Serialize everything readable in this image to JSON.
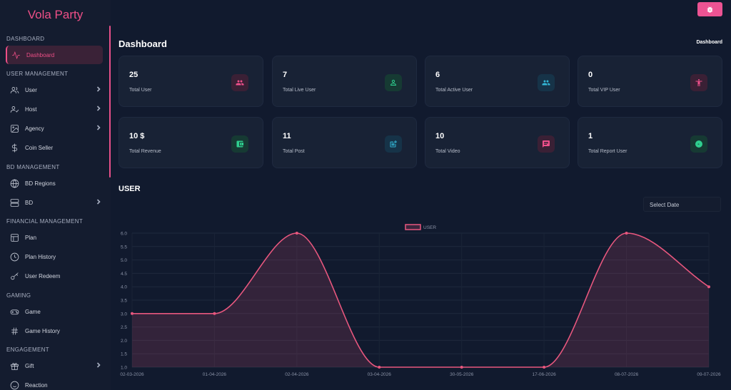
{
  "brand": "Vola Party",
  "top_button_icon": "bug-icon",
  "sidebar": {
    "sections": [
      {
        "title": "DASHBOARD",
        "items": [
          {
            "label": "Dashboard",
            "icon": "activity-icon",
            "active": true,
            "chevron": false
          }
        ]
      },
      {
        "title": "USER MANAGEMENT",
        "items": [
          {
            "label": "User",
            "icon": "users-icon",
            "chevron": true
          },
          {
            "label": "Host",
            "icon": "user-check-icon",
            "chevron": true
          },
          {
            "label": "Agency",
            "icon": "image-icon",
            "chevron": true
          },
          {
            "label": "Coin Seller",
            "icon": "dollar-icon",
            "chevron": false
          }
        ]
      },
      {
        "title": "BD MANAGEMENT",
        "items": [
          {
            "label": "BD Regions",
            "icon": "globe-icon",
            "chevron": false
          },
          {
            "label": "BD",
            "icon": "server-icon",
            "chevron": true
          }
        ]
      },
      {
        "title": "FINANCIAL MANAGEMENT",
        "items": [
          {
            "label": "Plan",
            "icon": "layout-icon",
            "chevron": false
          },
          {
            "label": "Plan History",
            "icon": "clock-icon",
            "chevron": false
          },
          {
            "label": "User Redeem",
            "icon": "key-icon",
            "chevron": false
          }
        ]
      },
      {
        "title": "GAMING",
        "items": [
          {
            "label": "Game",
            "icon": "gamepad-icon",
            "chevron": false
          },
          {
            "label": "Game History",
            "icon": "hash-icon",
            "chevron": false
          }
        ]
      },
      {
        "title": "ENGAGEMENT",
        "items": [
          {
            "label": "Gift",
            "icon": "gift-icon",
            "chevron": true
          },
          {
            "label": "Reaction",
            "icon": "smile-icon",
            "chevron": false
          }
        ]
      }
    ]
  },
  "header": {
    "title": "Dashboard",
    "breadcrumb": "Dashboard"
  },
  "cards": [
    {
      "value": "25",
      "label": "Total User",
      "icon": "users-icon",
      "color": "#f0508c",
      "bg": "#3a2035"
    },
    {
      "value": "7",
      "label": "Total Live User",
      "icon": "user-icon",
      "color": "#2fcf8f",
      "bg": "#163a33"
    },
    {
      "value": "6",
      "label": "Total Active User",
      "icon": "users-icon",
      "color": "#33b7d6",
      "bg": "#163348"
    },
    {
      "value": "0",
      "label": "Total VIP User",
      "icon": "accessibility-icon",
      "color": "#f0508c",
      "bg": "#3a2035"
    },
    {
      "value": "10 $",
      "label": "Total Revenue",
      "icon": "wallet-icon",
      "color": "#2fcf8f",
      "bg": "#163a33"
    },
    {
      "value": "11",
      "label": "Total Post",
      "icon": "post-add-icon",
      "color": "#33b7d6",
      "bg": "#163348"
    },
    {
      "value": "10",
      "label": "Total Video",
      "icon": "message-icon",
      "color": "#f0508c",
      "bg": "#3a2035"
    },
    {
      "value": "1",
      "label": "Total Report User",
      "icon": "messenger-icon",
      "color": "#2fcf8f",
      "bg": "#163a33"
    }
  ],
  "user_section": {
    "title": "USER",
    "date_placeholder": "Select Date"
  },
  "chart_data": {
    "type": "area",
    "series": [
      {
        "name": "USER",
        "color": "#e8577e",
        "values": [
          3,
          3,
          6,
          1,
          1,
          1,
          6,
          4
        ]
      }
    ],
    "categories": [
      "02-03-2026",
      "01-04-2026",
      "02-04-2026",
      "03-04-2026",
      "30-05-2026",
      "17-06-2026",
      "08-07-2026",
      "09-07-2026"
    ],
    "yticks": [
      "1.0",
      "1.5",
      "2.0",
      "2.5",
      "3.0",
      "3.5",
      "4.0",
      "4.5",
      "5.0",
      "5.5",
      "6.0"
    ],
    "ylim": [
      1,
      6
    ],
    "legend": "top-center"
  }
}
